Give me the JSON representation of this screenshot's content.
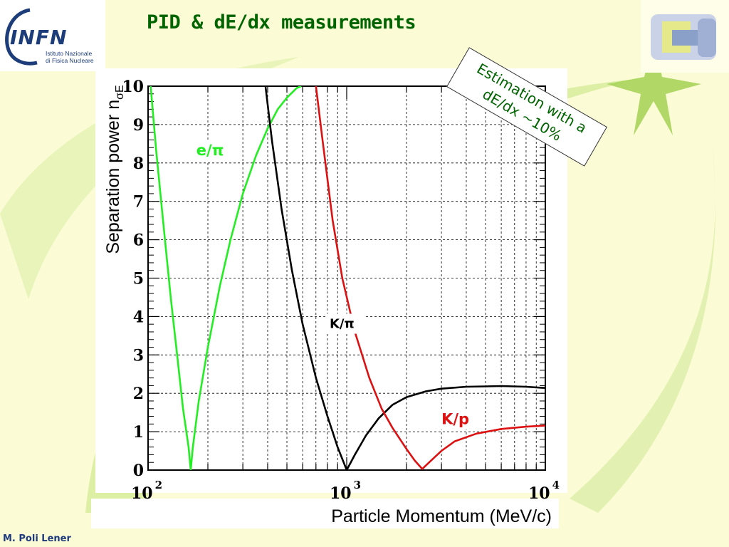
{
  "header": {
    "title": "PID & dE/dx measurements",
    "logo": {
      "name": "INFN",
      "subtitle_line1": "Istituto Nazionale",
      "subtitle_line2": "di Fisica Nucleare"
    }
  },
  "footer": {
    "author": "M. Poli Lener"
  },
  "annotation": {
    "line1": "Estimation with a",
    "line2": "dE/dx ~10%"
  },
  "colors": {
    "background": "#fbfbd5",
    "title": "#006400",
    "e_pi": "#22ee22",
    "k_pi": "#000000",
    "k_p": "#dd1111",
    "accent_swoosh": "#d7ec9c"
  },
  "chart_data": {
    "type": "line",
    "xlabel": "Particle Momentum (MeV/c)",
    "ylabel": "Separation power n",
    "ylabel_sub": "σE",
    "xscale": "log",
    "xlim": [
      100,
      10000
    ],
    "ylim": [
      0,
      10
    ],
    "grid": true,
    "x_ticks": [
      {
        "value": 100,
        "base": "10",
        "exp": "2"
      },
      {
        "value": 1000,
        "base": "10",
        "exp": "3"
      },
      {
        "value": 10000,
        "base": "10",
        "exp": "4"
      }
    ],
    "y_ticks": [
      "0",
      "1",
      "2",
      "3",
      "4",
      "5",
      "6",
      "7",
      "8",
      "9",
      "10"
    ],
    "series": [
      {
        "name": "e/π",
        "color": "#22ee22",
        "label_at": [
          175,
          8.2
        ],
        "points": [
          [
            103,
            10
          ],
          [
            110,
            8.3
          ],
          [
            120,
            6.3
          ],
          [
            130,
            4.5
          ],
          [
            140,
            3.0
          ],
          [
            150,
            1.6
          ],
          [
            160,
            0.6
          ],
          [
            164,
            0.0
          ],
          [
            168,
            0.6
          ],
          [
            180,
            1.8
          ],
          [
            200,
            3.2
          ],
          [
            230,
            4.8
          ],
          [
            260,
            6.0
          ],
          [
            300,
            7.2
          ],
          [
            350,
            8.2
          ],
          [
            400,
            8.9
          ],
          [
            450,
            9.4
          ],
          [
            500,
            9.7
          ],
          [
            560,
            9.95
          ],
          [
            590,
            10
          ]
        ]
      },
      {
        "name": "K/π",
        "color": "#000000",
        "label_at": [
          820,
          3.7
        ],
        "points": [
          [
            390,
            10
          ],
          [
            420,
            8.6
          ],
          [
            470,
            6.8
          ],
          [
            530,
            5.2
          ],
          [
            600,
            3.8
          ],
          [
            700,
            2.4
          ],
          [
            800,
            1.4
          ],
          [
            900,
            0.6
          ],
          [
            1000,
            0.0
          ],
          [
            1100,
            0.4
          ],
          [
            1250,
            0.9
          ],
          [
            1450,
            1.35
          ],
          [
            1700,
            1.7
          ],
          [
            2000,
            1.9
          ],
          [
            2500,
            2.05
          ],
          [
            3000,
            2.12
          ],
          [
            4000,
            2.17
          ],
          [
            5000,
            2.18
          ],
          [
            6000,
            2.19
          ],
          [
            8000,
            2.17
          ],
          [
            10000,
            2.14
          ]
        ]
      },
      {
        "name": "K/p",
        "color": "#dd1111",
        "label_at": [
          3000,
          1.2
        ],
        "points": [
          [
            700,
            10
          ],
          [
            760,
            8.5
          ],
          [
            850,
            6.5
          ],
          [
            950,
            5.0
          ],
          [
            1100,
            3.6
          ],
          [
            1300,
            2.4
          ],
          [
            1500,
            1.6
          ],
          [
            1700,
            1.1
          ],
          [
            2000,
            0.55
          ],
          [
            2200,
            0.25
          ],
          [
            2400,
            0.03
          ],
          [
            2600,
            0.2
          ],
          [
            3000,
            0.5
          ],
          [
            3500,
            0.75
          ],
          [
            4500,
            0.95
          ],
          [
            6000,
            1.07
          ],
          [
            8000,
            1.13
          ],
          [
            10000,
            1.16
          ]
        ]
      }
    ]
  }
}
